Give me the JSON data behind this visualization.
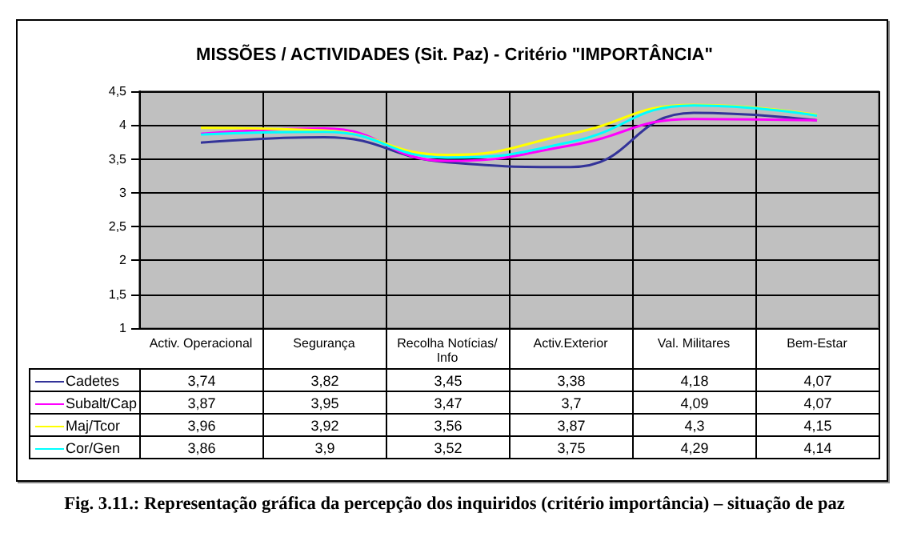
{
  "chart_data": {
    "type": "line",
    "title": "MISSÕES / ACTIVIDADES (Sit. Paz) - Critério \"IMPORTÂNCIA\"",
    "categories": [
      "Activ. Operacional",
      "Segurança",
      "Recolha Notícias/Info",
      "Activ.Exterior",
      "Val. Militares",
      "Bem-Estar"
    ],
    "series": [
      {
        "name": "Cadetes",
        "color": "#333399",
        "values": [
          3.74,
          3.82,
          3.45,
          3.38,
          4.18,
          4.07
        ],
        "value_labels": [
          "3,74",
          "3,82",
          "3,45",
          "3,38",
          "4,18",
          "4,07"
        ]
      },
      {
        "name": "Subalt/Cap",
        "color": "#ff00ff",
        "values": [
          3.87,
          3.95,
          3.47,
          3.7,
          4.09,
          4.07
        ],
        "value_labels": [
          "3,87",
          "3,95",
          "3,47",
          "3,7",
          "4,09",
          "4,07"
        ]
      },
      {
        "name": "Maj/Tcor",
        "color": "#ffff00",
        "values": [
          3.96,
          3.92,
          3.56,
          3.87,
          4.3,
          4.15
        ],
        "value_labels": [
          "3,96",
          "3,92",
          "3,56",
          "3,87",
          "4,3",
          "4,15"
        ]
      },
      {
        "name": "Cor/Gen",
        "color": "#00ffff",
        "values": [
          3.86,
          3.9,
          3.52,
          3.75,
          4.29,
          4.14
        ],
        "value_labels": [
          "3,86",
          "3,9",
          "3,52",
          "3,75",
          "4,29",
          "4,14"
        ]
      }
    ],
    "ylim": [
      1,
      4.5
    ],
    "yticks": [
      1,
      {
        "value": 1.5,
        "label": "1,5"
      },
      2,
      {
        "value": 2.5,
        "label": "2,5"
      },
      3,
      {
        "value": 3.5,
        "label": "3,5"
      },
      4,
      {
        "value": 4.5,
        "label": "4,5"
      }
    ],
    "grid": true,
    "legend": "bottom",
    "marker": "none",
    "annotations": [
      "Fig. 3.11.: Representação gráfica da percepção dos inquiridos (critério importância) – situação de paz"
    ]
  }
}
